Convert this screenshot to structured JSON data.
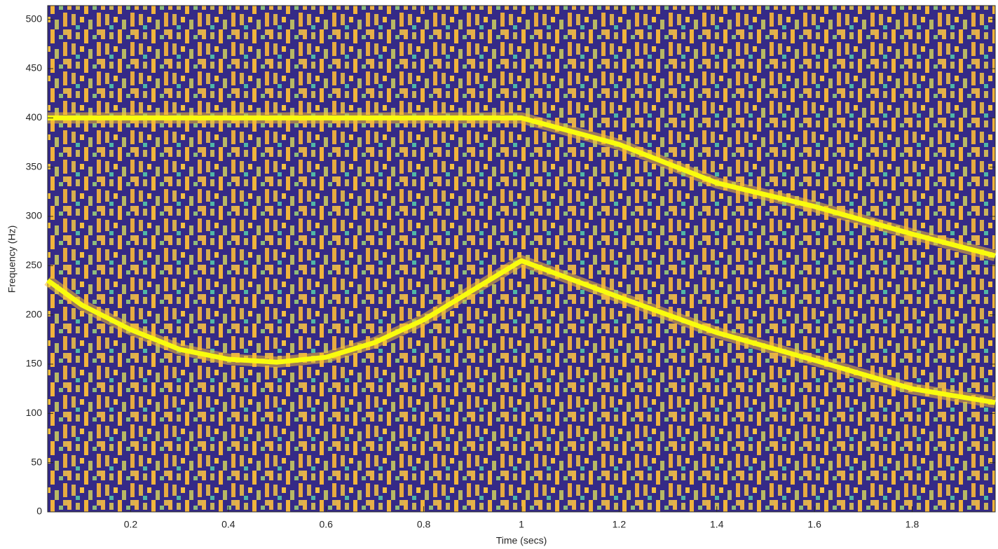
{
  "chart_data": {
    "type": "line",
    "xlabel": "Time (secs)",
    "ylabel": "Frequency (Hz)",
    "xlim": [
      0.03,
      1.97
    ],
    "ylim": [
      0,
      514
    ],
    "xticks": [
      0.2,
      0.4,
      0.6,
      0.8,
      1,
      1.2,
      1.4,
      1.6,
      1.8
    ],
    "yticks": [
      0,
      50,
      100,
      150,
      200,
      250,
      300,
      350,
      400,
      450,
      500
    ],
    "series": [
      {
        "color": "#f9fb0e",
        "x": [
          0.03,
          0.2,
          0.4,
          0.6,
          0.8,
          1.0,
          1.2,
          1.4,
          1.6,
          1.8,
          1.97
        ],
        "values": [
          400,
          400,
          400,
          400,
          400,
          400,
          373,
          334,
          310,
          282,
          260
        ]
      },
      {
        "color": "#f9fb0e",
        "x": [
          0.03,
          0.1,
          0.2,
          0.3,
          0.4,
          0.5,
          0.6,
          0.7,
          0.8,
          0.9,
          1.0,
          1.2,
          1.4,
          1.6,
          1.8,
          1.97
        ],
        "values": [
          235,
          210,
          185,
          165,
          155,
          152,
          157,
          172,
          195,
          225,
          255,
          218,
          182,
          154,
          125,
          111
        ]
      }
    ]
  }
}
